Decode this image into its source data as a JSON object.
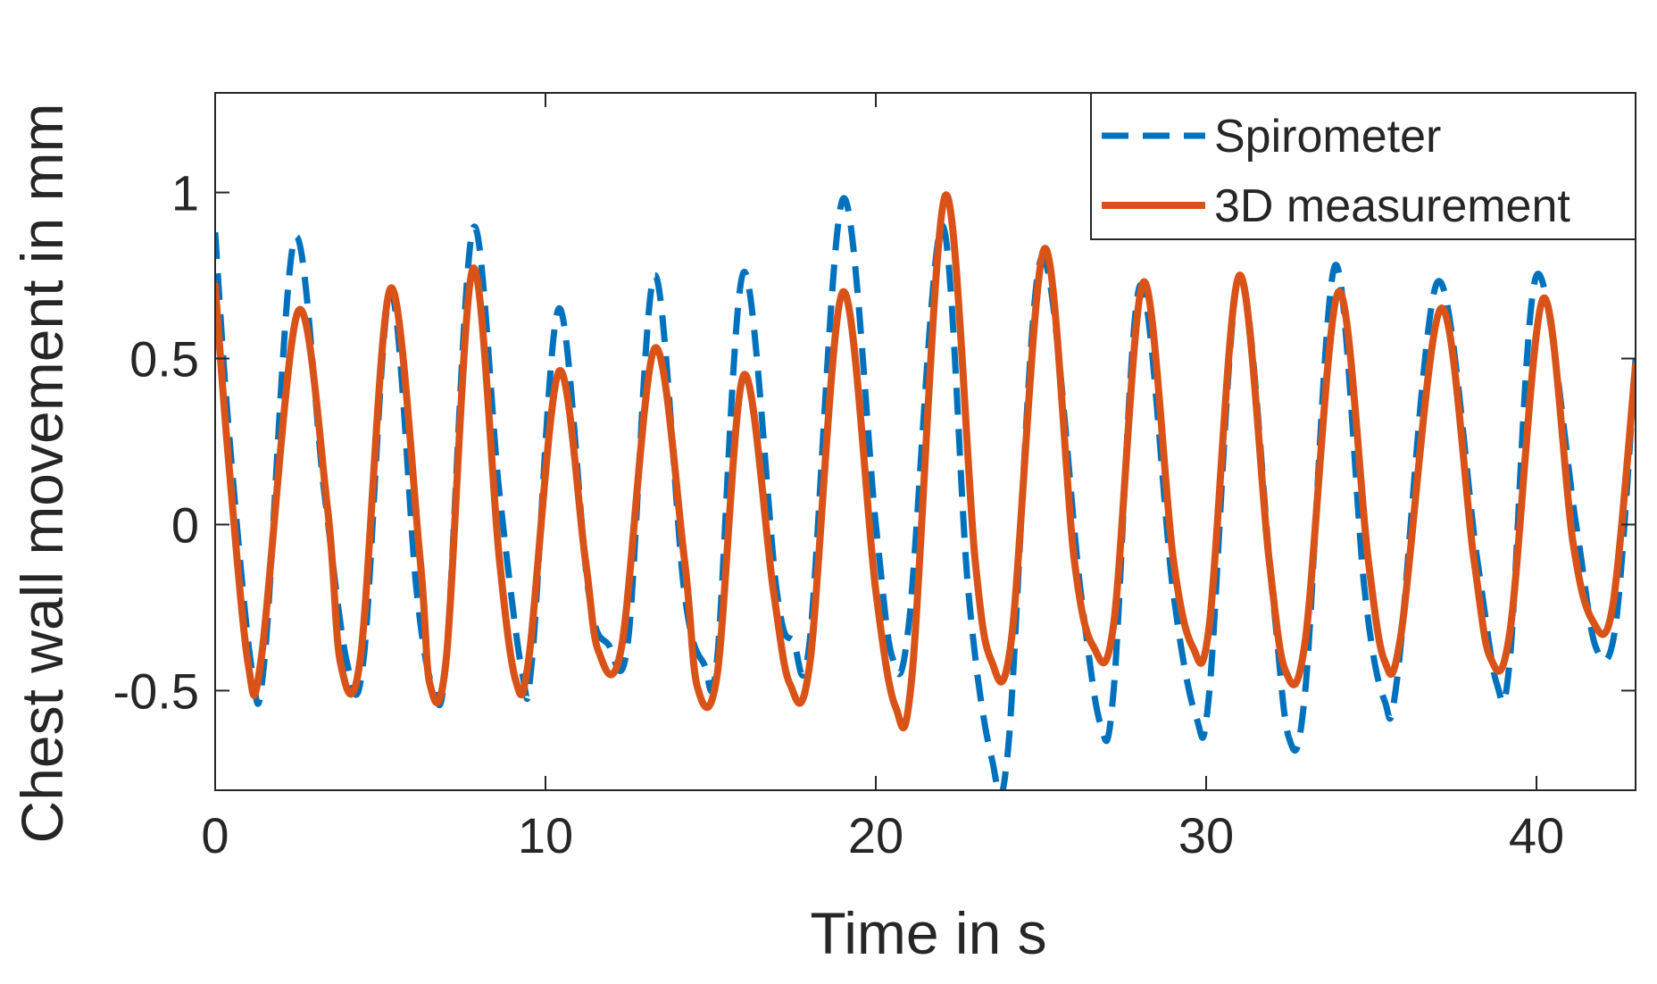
{
  "chart_data": {
    "type": "line",
    "title": "",
    "xlabel": "Time in s",
    "ylabel": "Chest wall movement in mm",
    "xlim": [
      0,
      43
    ],
    "ylim": [
      -0.8,
      1.3
    ],
    "xticks": [
      0,
      10,
      20,
      30,
      40
    ],
    "xtick_labels": [
      "0",
      "10",
      "20",
      "30",
      "40"
    ],
    "yticks": [
      -0.5,
      0,
      0.5,
      1
    ],
    "ytick_labels": [
      "-0.5",
      "0",
      "0.5",
      "1"
    ],
    "grid": false,
    "legend_location": "top-right",
    "series": [
      {
        "name": "Spirometer",
        "color": "#0072BD",
        "style": "dashed",
        "x": [
          0,
          0.4,
          1.1,
          1.5,
          2.4,
          3.3,
          4.0,
          4.5,
          5.3,
          6.1,
          6.6,
          7.0,
          7.8,
          8.6,
          9.3,
          9.6,
          10.4,
          11.3,
          11.9,
          12.5,
          13.3,
          14.2,
          14.8,
          15.2,
          16.0,
          17.0,
          17.5,
          18.0,
          19.0,
          20.0,
          20.5,
          21.0,
          22.0,
          22.8,
          23.5,
          24.0,
          25.0,
          26.2,
          26.8,
          27.2,
          28.0,
          29.0,
          29.7,
          30.1,
          31.0,
          32.0,
          32.5,
          33.0,
          33.9,
          34.8,
          35.4,
          35.8,
          37.0,
          38.2,
          38.8,
          39.2,
          40.0,
          41.2,
          41.8,
          42.4,
          43.0
        ],
        "y": [
          0.88,
          0.3,
          -0.43,
          -0.4,
          0.86,
          0.1,
          -0.42,
          -0.4,
          0.7,
          -0.2,
          -0.49,
          -0.4,
          0.89,
          0.1,
          -0.45,
          -0.4,
          0.65,
          -0.2,
          -0.36,
          -0.35,
          0.75,
          -0.2,
          -0.42,
          -0.4,
          0.76,
          -0.2,
          -0.35,
          -0.35,
          0.98,
          0.0,
          -0.4,
          -0.3,
          0.9,
          -0.2,
          -0.7,
          -0.68,
          0.8,
          -0.2,
          -0.6,
          -0.5,
          0.72,
          -0.2,
          -0.58,
          -0.5,
          0.75,
          -0.2,
          -0.64,
          -0.5,
          0.78,
          -0.2,
          -0.53,
          -0.45,
          0.73,
          -0.1,
          -0.48,
          -0.4,
          0.75,
          0.0,
          -0.37,
          -0.3,
          0.5
        ]
      },
      {
        "name": "3D measurement",
        "color": "#D95319",
        "style": "solid",
        "x": [
          0,
          0.4,
          1.0,
          1.4,
          2.5,
          3.4,
          3.8,
          4.4,
          5.3,
          6.2,
          6.5,
          7.0,
          7.8,
          8.6,
          9.1,
          9.5,
          10.4,
          11.2,
          11.6,
          12.3,
          13.3,
          14.2,
          14.6,
          15.2,
          16.0,
          16.9,
          17.4,
          18.0,
          19.0,
          20.0,
          20.6,
          21.1,
          22.1,
          23.0,
          23.5,
          24.1,
          25.1,
          26.0,
          26.6,
          27.2,
          28.1,
          29.0,
          29.6,
          30.1,
          31.0,
          31.9,
          32.4,
          33.0,
          34.0,
          34.9,
          35.4,
          35.9,
          37.1,
          38.1,
          38.6,
          39.2,
          40.2,
          41.1,
          41.7,
          42.3,
          43.0
        ],
        "y": [
          0.72,
          0.2,
          -0.42,
          -0.4,
          0.64,
          0.05,
          -0.42,
          -0.4,
          0.71,
          -0.1,
          -0.48,
          -0.4,
          0.77,
          -0.1,
          -0.47,
          -0.4,
          0.46,
          -0.1,
          -0.38,
          -0.37,
          0.53,
          -0.1,
          -0.49,
          -0.45,
          0.45,
          -0.2,
          -0.48,
          -0.42,
          0.7,
          -0.2,
          -0.55,
          -0.45,
          0.99,
          -0.1,
          -0.41,
          -0.35,
          0.83,
          -0.1,
          -0.37,
          -0.3,
          0.73,
          -0.1,
          -0.37,
          -0.3,
          0.75,
          -0.1,
          -0.44,
          -0.35,
          0.7,
          -0.1,
          -0.41,
          -0.33,
          0.65,
          -0.1,
          -0.4,
          -0.32,
          0.68,
          -0.05,
          -0.29,
          -0.25,
          0.48
        ]
      }
    ]
  }
}
